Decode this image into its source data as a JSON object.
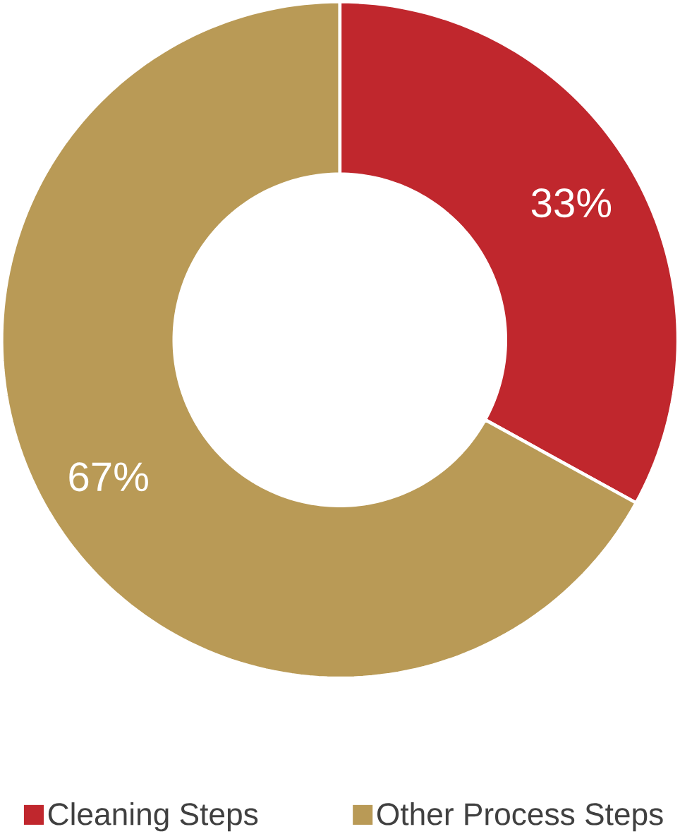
{
  "chart_data": {
    "type": "donut",
    "categories": [
      "Cleaning Steps",
      "Other Process Steps"
    ],
    "values": [
      33,
      67
    ],
    "colors": [
      "#c0272d",
      "#b99a56"
    ],
    "value_labels": [
      "33%",
      "67%"
    ],
    "legend": "bottom"
  }
}
